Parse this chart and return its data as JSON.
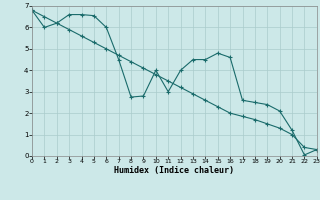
{
  "xlabel": "Humidex (Indice chaleur)",
  "xlim": [
    0,
    23
  ],
  "ylim": [
    0,
    7
  ],
  "xticks": [
    0,
    1,
    2,
    3,
    4,
    5,
    6,
    7,
    8,
    9,
    10,
    11,
    12,
    13,
    14,
    15,
    16,
    17,
    18,
    19,
    20,
    21,
    22,
    23
  ],
  "yticks": [
    0,
    1,
    2,
    3,
    4,
    5,
    6,
    7
  ],
  "bg_color": "#cce8e8",
  "grid_color": "#aacccc",
  "line_color": "#1a6b6b",
  "line1_x": [
    0,
    1,
    2,
    3,
    4,
    5,
    6,
    7,
    8,
    9,
    10,
    11,
    12,
    13,
    14,
    15,
    16,
    17,
    18,
    19,
    20,
    21,
    22,
    23
  ],
  "line1_y": [
    6.8,
    6.0,
    6.2,
    6.6,
    6.6,
    6.55,
    6.0,
    4.5,
    2.75,
    2.8,
    4.0,
    3.0,
    4.0,
    4.5,
    4.5,
    4.8,
    4.6,
    2.6,
    2.5,
    2.4,
    2.1,
    1.2,
    0.05,
    0.3
  ],
  "line2_x": [
    0,
    1,
    2,
    3,
    4,
    5,
    6,
    7,
    8,
    9,
    10,
    11,
    12,
    13,
    14,
    15,
    16,
    17,
    18,
    19,
    20,
    21,
    22,
    23
  ],
  "line2_y": [
    6.8,
    6.5,
    6.2,
    5.9,
    5.6,
    5.3,
    5.0,
    4.7,
    4.4,
    4.1,
    3.8,
    3.5,
    3.2,
    2.9,
    2.6,
    2.3,
    2.0,
    1.85,
    1.7,
    1.5,
    1.3,
    1.0,
    0.4,
    0.3
  ]
}
